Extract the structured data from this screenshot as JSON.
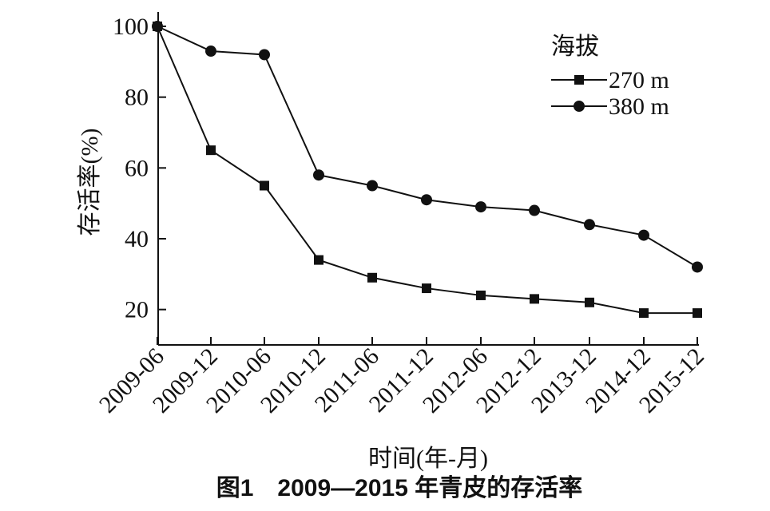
{
  "chart_data": {
    "type": "line",
    "title": "图1　2009—2015 年青皮的存活率",
    "xlabel": "时间(年-月)",
    "ylabel": "存活率(%)",
    "categories": [
      "2009-06",
      "2009-12",
      "2010-06",
      "2010-12",
      "2011-06",
      "2011-12",
      "2012-06",
      "2012-12",
      "2013-12",
      "2014-12",
      "2015-12"
    ],
    "yticks": [
      "20",
      "40",
      "60",
      "80",
      "100"
    ],
    "ylim": [
      10,
      100
    ],
    "legend_title": "海拔",
    "legend_position": "top-right",
    "grid": false,
    "series": [
      {
        "name": "270 m",
        "marker": "square",
        "values": [
          100,
          65,
          55,
          34,
          29,
          26,
          24,
          23,
          22,
          19,
          19
        ]
      },
      {
        "name": "380 m",
        "marker": "circle",
        "values": [
          100,
          93,
          92,
          58,
          55,
          51,
          49,
          48,
          44,
          41,
          32
        ]
      }
    ]
  }
}
